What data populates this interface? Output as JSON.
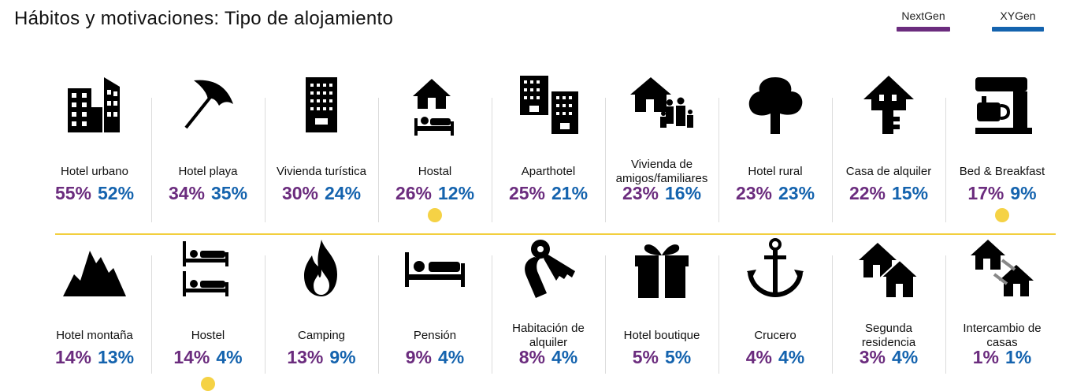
{
  "title": "Hábitos y motivaciones: Tipo de alojamiento",
  "colors": {
    "nextgen": "#6b2c7e",
    "xygen": "#1463ae",
    "divider": "#f2cf3e",
    "marker": "#f5d245"
  },
  "legend": [
    {
      "name": "NextGen",
      "color": "#6b2c7e"
    },
    {
      "name": "XYGen",
      "color": "#1463ae"
    }
  ],
  "chart_data": {
    "type": "table",
    "title": "Hábitos y motivaciones: Tipo de alojamiento",
    "series_names": [
      "NextGen",
      "XYGen"
    ],
    "items": [
      {
        "label": "Hotel urbano",
        "icon": "city-buildings-icon",
        "nextgen": "55%",
        "xygen": "52%",
        "highlight": false
      },
      {
        "label": "Hotel playa",
        "icon": "beach-umbrella-icon",
        "nextgen": "34%",
        "xygen": "35%",
        "highlight": false
      },
      {
        "label": "Vivienda turística",
        "icon": "apartment-building-icon",
        "nextgen": "30%",
        "xygen": "24%",
        "highlight": false
      },
      {
        "label": "Hostal",
        "icon": "house-bed-icon",
        "nextgen": "26%",
        "xygen": "12%",
        "highlight": true
      },
      {
        "label": "Aparthotel",
        "icon": "two-buildings-icon",
        "nextgen": "25%",
        "xygen": "21%",
        "highlight": false
      },
      {
        "label": "Vivienda de amigos/familiares",
        "icon": "house-family-icon",
        "nextgen": "23%",
        "xygen": "16%",
        "highlight": false
      },
      {
        "label": "Hotel rural",
        "icon": "tree-icon",
        "nextgen": "23%",
        "xygen": "23%",
        "highlight": false
      },
      {
        "label": "Casa de alquiler",
        "icon": "house-key-icon",
        "nextgen": "22%",
        "xygen": "15%",
        "highlight": false
      },
      {
        "label": "Bed & Breakfast",
        "icon": "coffee-machine-icon",
        "nextgen": "17%",
        "xygen": "9%",
        "highlight": true
      },
      {
        "label": "Hotel montaña",
        "icon": "mountains-icon",
        "nextgen": "14%",
        "xygen": "13%",
        "highlight": false
      },
      {
        "label": "Hostel",
        "icon": "bunk-beds-icon",
        "nextgen": "14%",
        "xygen": "4%",
        "highlight": true
      },
      {
        "label": "Camping",
        "icon": "campfire-icon",
        "nextgen": "13%",
        "xygen": "9%",
        "highlight": false
      },
      {
        "label": "Pensión",
        "icon": "bed-icon",
        "nextgen": "9%",
        "xygen": "4%",
        "highlight": false
      },
      {
        "label": "Habitación de alquiler",
        "icon": "room-key-icon",
        "nextgen": "8%",
        "xygen": "4%",
        "highlight": false
      },
      {
        "label": "Hotel boutique",
        "icon": "gift-box-icon",
        "nextgen": "5%",
        "xygen": "5%",
        "highlight": false
      },
      {
        "label": "Crucero",
        "icon": "anchor-icon",
        "nextgen": "4%",
        "xygen": "4%",
        "highlight": false
      },
      {
        "label": "Segunda residencia",
        "icon": "two-houses-icon",
        "nextgen": "3%",
        "xygen": "4%",
        "highlight": false
      },
      {
        "label": "Intercambio de casas",
        "icon": "house-exchange-icon",
        "nextgen": "1%",
        "xygen": "1%",
        "highlight": false
      }
    ]
  }
}
